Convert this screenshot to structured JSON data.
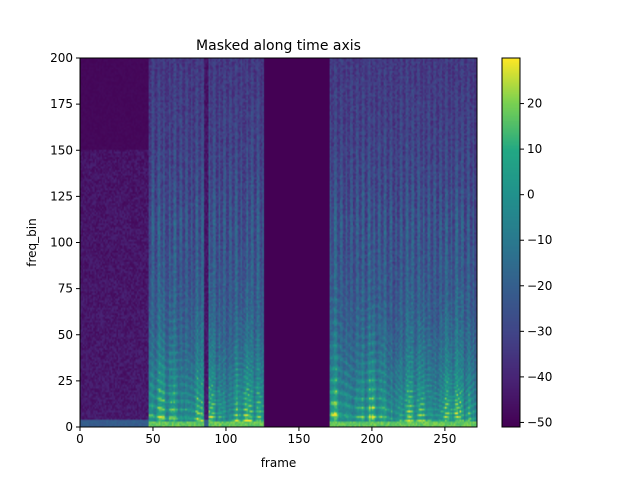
{
  "chart_data": {
    "type": "heatmap",
    "title": "Masked along time axis",
    "xlabel": "frame",
    "ylabel": "freq_bin",
    "xlim": [
      0,
      272
    ],
    "ylim": [
      0,
      200
    ],
    "x_ticks": [
      0,
      50,
      100,
      150,
      200,
      250
    ],
    "y_ticks": [
      0,
      25,
      50,
      75,
      100,
      125,
      150,
      175,
      200
    ],
    "colorbar": {
      "colormap": "viridis",
      "range": [
        -51,
        30
      ],
      "ticks": [
        20,
        10,
        0,
        -10,
        -20,
        -30,
        -40,
        -50
      ],
      "tick_labels": [
        "20",
        "10",
        "0",
        "−10",
        "−20",
        "−30",
        "−40",
        "−50"
      ]
    },
    "masked_frames": [
      [
        126,
        170
      ]
    ],
    "silent_frames": [
      [
        0,
        46
      ],
      [
        85,
        87
      ]
    ],
    "speech_segments": [
      [
        47,
        125
      ],
      [
        171,
        272
      ]
    ],
    "n_frames": 272,
    "n_freq_bins": 201,
    "grid": false
  }
}
